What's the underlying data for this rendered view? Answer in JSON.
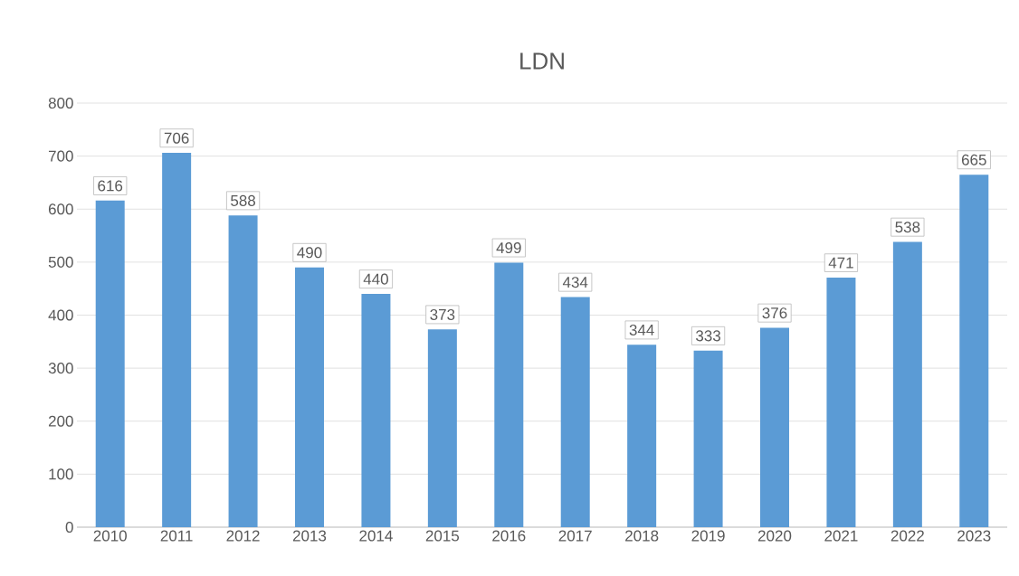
{
  "chart_data": {
    "type": "bar",
    "title": "LDN",
    "categories": [
      "2010",
      "2011",
      "2012",
      "2013",
      "2014",
      "2015",
      "2016",
      "2017",
      "2018",
      "2019",
      "2020",
      "2021",
      "2022",
      "2023"
    ],
    "values": [
      616,
      706,
      588,
      490,
      440,
      373,
      499,
      434,
      344,
      333,
      376,
      471,
      538,
      665
    ],
    "color": "#5b9bd5",
    "ylim": [
      0,
      800
    ],
    "yticks": [
      0,
      100,
      200,
      300,
      400,
      500,
      600,
      700,
      800
    ],
    "grid": "y",
    "data_labels": true
  }
}
